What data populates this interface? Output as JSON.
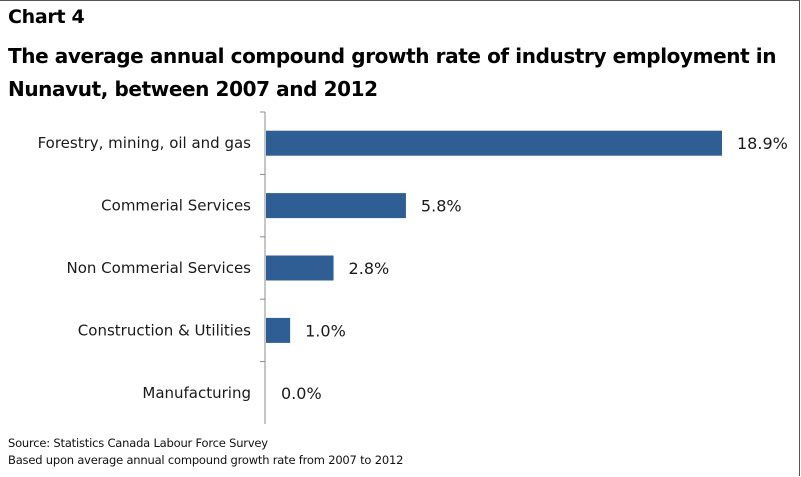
{
  "header": {
    "chart_number": "Chart 4",
    "title": "The average annual compound growth rate of industry employment in Nunavut, between 2007 and 2012"
  },
  "chart_data": {
    "type": "bar",
    "orientation": "horizontal",
    "categories": [
      "Forestry, mining, oil and gas",
      "Commerial Services",
      "Non Commerial Services",
      "Construction & Utilities",
      "Manufacturing"
    ],
    "values": [
      18.9,
      5.8,
      2.8,
      1.0,
      0.0
    ],
    "value_labels": [
      "18.9%",
      "5.8%",
      "2.8%",
      "1.0%",
      "0.0%"
    ],
    "xlim": [
      0,
      18.9
    ],
    "bar_color": "#2e5e93",
    "axis_color": "#8c8c8c",
    "grid": false,
    "legend": "none"
  },
  "notes": {
    "source": "Source: Statistics Canada Labour Force Survey",
    "basis": "Based upon average annual compound growth rate from 2007 to 2012"
  }
}
